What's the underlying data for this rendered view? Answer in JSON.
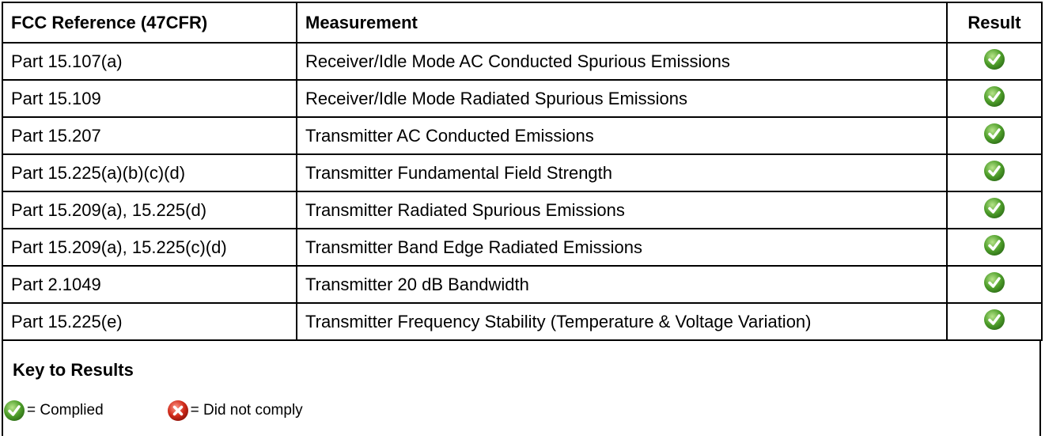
{
  "table": {
    "columns": [
      "FCC Reference (47CFR)",
      "Measurement",
      "Result"
    ],
    "rows": [
      [
        "Part 15.107(a)",
        "Receiver/Idle Mode AC Conducted Spurious Emissions"
      ],
      [
        "Part 15.109",
        "Receiver/Idle Mode Radiated Spurious Emissions"
      ],
      [
        "Part 15.207",
        "Transmitter AC Conducted Emissions"
      ],
      [
        "Part 15.225(a)(b)(c)(d)",
        "Transmitter Fundamental Field Strength"
      ],
      [
        "Part 15.209(a), 15.225(d)",
        "Transmitter Radiated Spurious Emissions"
      ],
      [
        "Part 15.209(a), 15.225(c)(d)",
        "Transmitter Band Edge Radiated Emissions"
      ],
      [
        "Part 2.1049",
        "Transmitter 20 dB Bandwidth"
      ],
      [
        "Part 15.225(e)",
        "Transmitter Frequency Stability (Temperature & Voltage Variation)"
      ]
    ]
  },
  "key": {
    "title": "Key to Results",
    "items": [
      "= Complied",
      "= Did not comply"
    ]
  }
}
